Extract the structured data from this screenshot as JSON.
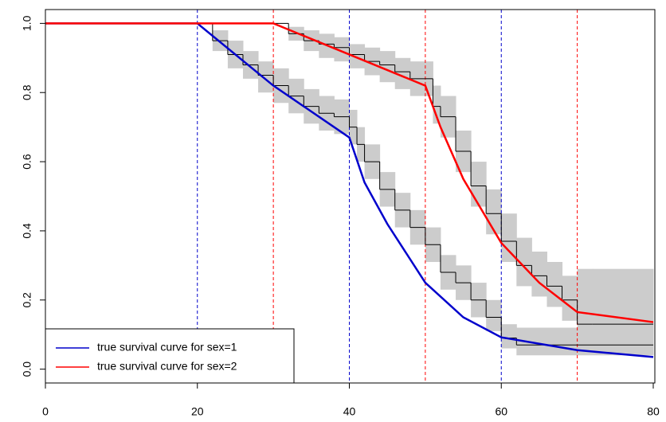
{
  "chart_data": {
    "type": "line",
    "xlim": [
      0,
      80
    ],
    "ylim": [
      -0.04,
      1.04
    ],
    "xticks": [
      0,
      20,
      40,
      60,
      80
    ],
    "yticks": [
      {
        "value": 0,
        "label": "0.0"
      },
      {
        "value": 0.2,
        "label": "0.2"
      },
      {
        "value": 0.4,
        "label": "0.4"
      },
      {
        "value": 0.6,
        "label": "0.6"
      },
      {
        "value": 0.8,
        "label": "0.8"
      },
      {
        "value": 1,
        "label": "1.0"
      }
    ],
    "legend": "bottom-left",
    "series": [
      {
        "name": "true survival curve for sex=1",
        "color": "#0000cc",
        "x": [
          0,
          20,
          30,
          40,
          42,
          45,
          50,
          55,
          60,
          70,
          80
        ],
        "values": [
          1,
          1,
          0.82,
          0.67,
          0.54,
          0.42,
          0.25,
          0.15,
          0.092,
          0.055,
          0.035
        ]
      },
      {
        "name": "true survival curve for sex=2",
        "color": "#ff0000",
        "x": [
          0,
          30,
          40,
          50,
          52,
          55,
          60,
          65,
          70,
          80
        ],
        "values": [
          1,
          1,
          0.91,
          0.82,
          0.7,
          0.55,
          0.365,
          0.25,
          0.165,
          0.136
        ]
      }
    ],
    "km_curves": [
      {
        "color": "#000000",
        "x": [
          0,
          20,
          22,
          24,
          26,
          28,
          30,
          32,
          34,
          36,
          38,
          40,
          41,
          42,
          44,
          46,
          48,
          50,
          52,
          54,
          56,
          58,
          60,
          62,
          80
        ],
        "values": [
          1,
          1,
          0.95,
          0.91,
          0.88,
          0.85,
          0.82,
          0.79,
          0.76,
          0.74,
          0.73,
          0.7,
          0.65,
          0.6,
          0.52,
          0.46,
          0.41,
          0.36,
          0.28,
          0.25,
          0.2,
          0.15,
          0.09,
          0.07,
          0.07
        ],
        "lower": [
          1,
          1,
          0.92,
          0.87,
          0.84,
          0.8,
          0.77,
          0.74,
          0.71,
          0.69,
          0.68,
          0.65,
          0.6,
          0.55,
          0.47,
          0.41,
          0.36,
          0.31,
          0.23,
          0.2,
          0.15,
          0.11,
          0.06,
          0.04,
          0.04
        ],
        "upper": [
          1,
          1,
          0.98,
          0.95,
          0.92,
          0.89,
          0.87,
          0.84,
          0.81,
          0.79,
          0.78,
          0.75,
          0.7,
          0.65,
          0.57,
          0.51,
          0.46,
          0.41,
          0.33,
          0.3,
          0.25,
          0.2,
          0.13,
          0.12,
          0.12
        ]
      },
      {
        "color": "#000000",
        "x": [
          0,
          30,
          32,
          34,
          36,
          38,
          40,
          42,
          44,
          46,
          48,
          50,
          51,
          52,
          54,
          56,
          58,
          60,
          62,
          64,
          66,
          68,
          70,
          72,
          80
        ],
        "values": [
          1,
          1,
          0.97,
          0.95,
          0.94,
          0.93,
          0.91,
          0.89,
          0.88,
          0.86,
          0.84,
          0.84,
          0.76,
          0.73,
          0.63,
          0.53,
          0.45,
          0.37,
          0.3,
          0.27,
          0.24,
          0.2,
          0.13,
          0.13,
          0.13
        ],
        "lower": [
          1,
          1,
          0.95,
          0.92,
          0.9,
          0.89,
          0.87,
          0.85,
          0.83,
          0.81,
          0.79,
          0.79,
          0.71,
          0.67,
          0.57,
          0.47,
          0.39,
          0.31,
          0.24,
          0.21,
          0.18,
          0.14,
          0.06,
          0.06,
          0.06
        ],
        "upper": [
          1,
          1,
          0.99,
          0.98,
          0.97,
          0.96,
          0.94,
          0.93,
          0.92,
          0.9,
          0.89,
          0.89,
          0.82,
          0.79,
          0.69,
          0.6,
          0.52,
          0.45,
          0.38,
          0.34,
          0.31,
          0.27,
          0.29,
          0.29,
          0.29
        ]
      }
    ],
    "band_color": "#cccccc",
    "vlines": [
      {
        "x": 20,
        "color": "#0000cc"
      },
      {
        "x": 30,
        "color": "#ff0000"
      },
      {
        "x": 40,
        "color": "#0000cc"
      },
      {
        "x": 50,
        "color": "#ff0000"
      },
      {
        "x": 60,
        "color": "#0000cc"
      },
      {
        "x": 70,
        "color": "#ff0000"
      }
    ]
  }
}
